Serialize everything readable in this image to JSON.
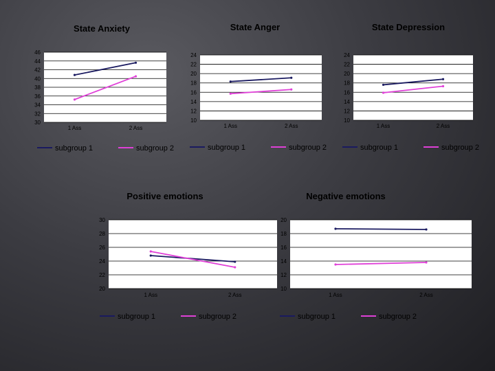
{
  "colors": {
    "subgroup1": "#1a1a60",
    "subgroup2": "#e040d8",
    "plot_bg": "#ffffff",
    "grid": "#000000",
    "text": "#000000"
  },
  "chart_data": [
    {
      "type": "line",
      "title": "State Anxiety",
      "categories": [
        "1 Ass",
        "2 Ass"
      ],
      "ylim": [
        30,
        46
      ],
      "yticks": [
        30,
        32,
        34,
        36,
        38,
        40,
        42,
        44,
        46
      ],
      "ytick_labels": [
        "30",
        "32",
        "34",
        "36",
        "38",
        "40",
        "42",
        "44",
        "46"
      ],
      "series": [
        {
          "name": "subgroup 1",
          "values": [
            40.8,
            43.6
          ]
        },
        {
          "name": "subgroup 2",
          "values": [
            35.2,
            40.5
          ]
        }
      ]
    },
    {
      "type": "line",
      "title": "State Anger",
      "categories": [
        "1 Ass",
        "2 Ass"
      ],
      "ylim": [
        10,
        24
      ],
      "yticks": [
        10,
        12,
        14,
        16,
        18,
        20,
        22,
        24
      ],
      "ytick_labels": [
        "10",
        "12",
        "14",
        "16",
        "18",
        "20",
        "22",
        "24"
      ],
      "series": [
        {
          "name": "subgroup 1",
          "values": [
            18.3,
            19.1
          ]
        },
        {
          "name": "subgroup 2",
          "values": [
            15.7,
            16.6
          ]
        }
      ]
    },
    {
      "type": "line",
      "title": "State Depression",
      "categories": [
        "1 Ass",
        "2 Ass"
      ],
      "ylim": [
        10,
        24
      ],
      "yticks": [
        10,
        12,
        14,
        16,
        18,
        20,
        22,
        24
      ],
      "ytick_labels": [
        "10",
        "12",
        "14",
        "16",
        "18",
        "20",
        "22",
        "24"
      ],
      "series": [
        {
          "name": "subgroup 1",
          "values": [
            17.6,
            18.8
          ]
        },
        {
          "name": "subgroup 2",
          "values": [
            15.9,
            17.3
          ]
        }
      ]
    },
    {
      "type": "line",
      "title": "Positive emotions",
      "categories": [
        "1 Ass",
        "2 Ass"
      ],
      "ylim": [
        20,
        30
      ],
      "yticks": [
        20,
        22,
        24,
        26,
        28,
        30
      ],
      "ytick_labels": [
        "20",
        "22",
        "24",
        "26",
        "28",
        "30"
      ],
      "series": [
        {
          "name": "subgroup 1",
          "values": [
            24.8,
            23.9
          ]
        },
        {
          "name": "subgroup 2",
          "values": [
            25.4,
            23.1
          ]
        }
      ]
    },
    {
      "type": "line",
      "title": "Negative emotions",
      "categories": [
        "1 Ass",
        "2 Ass"
      ],
      "ylim": [
        10,
        20
      ],
      "yticks": [
        10,
        12,
        14,
        16,
        18,
        20
      ],
      "ytick_labels": [
        "10",
        "12",
        "14",
        "16",
        "18",
        "20"
      ],
      "series": [
        {
          "name": "subgroup 1",
          "values": [
            18.7,
            18.6
          ]
        },
        {
          "name": "subgroup 2",
          "values": [
            13.5,
            13.8
          ]
        }
      ]
    }
  ]
}
